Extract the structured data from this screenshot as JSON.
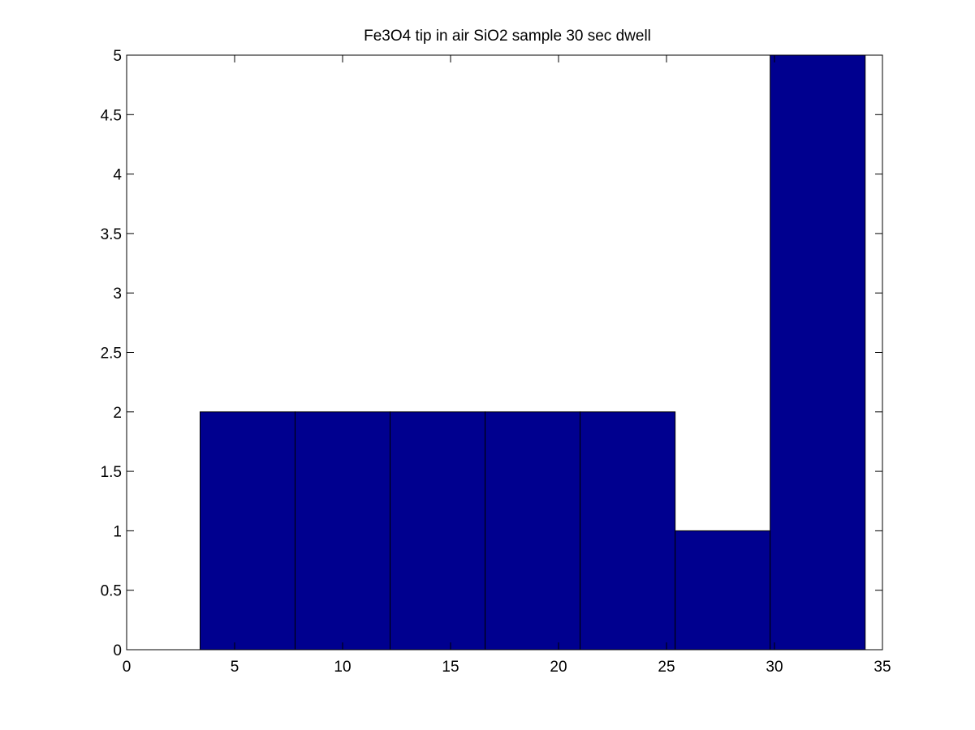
{
  "chart_data": {
    "type": "bar",
    "title": "Fe3O4 tip in air SiO2 sample 30 sec dwell",
    "xlabel": "",
    "ylabel": "",
    "xlim": [
      0,
      35
    ],
    "ylim": [
      0,
      5
    ],
    "bins": [
      {
        "x_start": 3.4,
        "x_end": 7.8,
        "count": 2
      },
      {
        "x_start": 7.8,
        "x_end": 12.2,
        "count": 2
      },
      {
        "x_start": 12.2,
        "x_end": 16.6,
        "count": 2
      },
      {
        "x_start": 16.6,
        "x_end": 21.0,
        "count": 2
      },
      {
        "x_start": 21.0,
        "x_end": 25.4,
        "count": 2
      },
      {
        "x_start": 25.4,
        "x_end": 29.8,
        "count": 1
      },
      {
        "x_start": 29.8,
        "x_end": 34.2,
        "count": 5
      }
    ],
    "xticks": [
      "0",
      "5",
      "10",
      "15",
      "20",
      "25",
      "30",
      "35"
    ],
    "xtick_values": [
      0,
      5,
      10,
      15,
      20,
      25,
      30,
      35
    ],
    "yticks": [
      "0",
      "0.5",
      "1",
      "1.5",
      "2",
      "2.5",
      "3",
      "3.5",
      "4",
      "4.5",
      "5"
    ],
    "ytick_values": [
      0,
      0.5,
      1,
      1.5,
      2,
      2.5,
      3,
      3.5,
      4,
      4.5,
      5
    ],
    "bar_color": "#00008f",
    "edge_color": "#000000",
    "grid": false,
    "legend": "none"
  }
}
